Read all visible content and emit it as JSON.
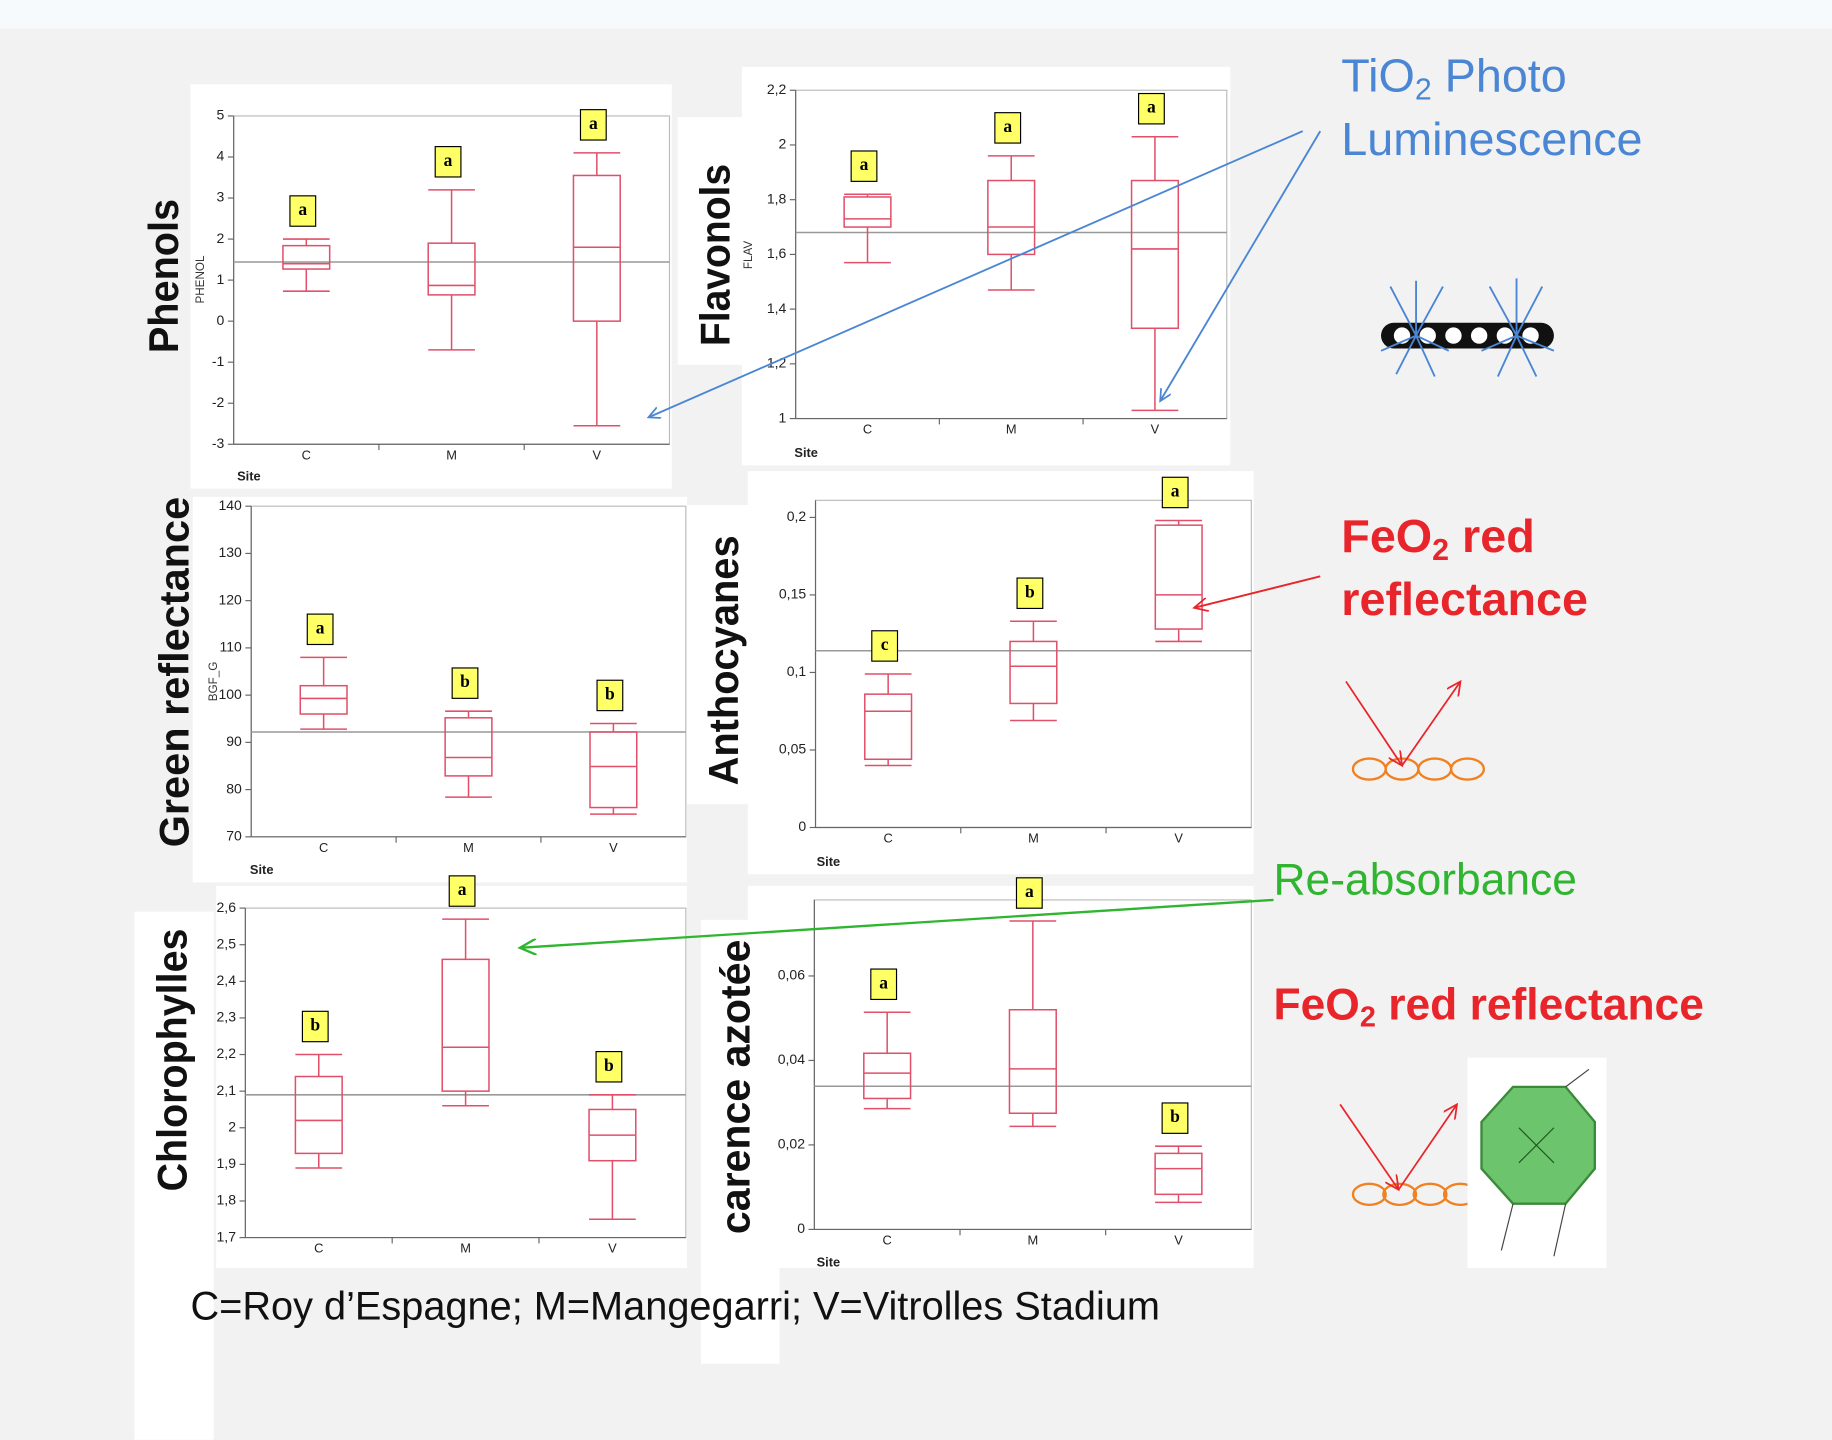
{
  "chart_data": [
    {
      "type": "box",
      "title": "Phenols",
      "ylabel": "PHENOL",
      "xlabel": "Site",
      "categories": [
        "C",
        "M",
        "V"
      ],
      "ylim": [
        -3,
        5
      ],
      "yticks": [
        -3,
        -2,
        -1,
        0,
        1,
        2,
        3,
        4,
        5
      ],
      "mean": 1.44,
      "color": "#e0506a",
      "boxes": [
        {
          "min": 0.73,
          "q1": 1.27,
          "median": 1.4,
          "q3": 1.84,
          "max": 2.0
        },
        {
          "min": -0.7,
          "q1": 0.64,
          "median": 0.87,
          "q3": 1.9,
          "max": 3.2
        },
        {
          "min": -2.55,
          "q1": 0.0,
          "median": 1.8,
          "q3": 3.55,
          "max": 4.1
        }
      ],
      "group_labels": [
        "a",
        "a",
        "a"
      ]
    },
    {
      "type": "box",
      "title": "Flavonols",
      "ylabel": "FLAV",
      "xlabel": "Site",
      "categories": [
        "C",
        "M",
        "V"
      ],
      "ylim": [
        1,
        2.2
      ],
      "yticks": [
        1,
        {
          "value": 1.2,
          "label": "1,2"
        },
        {
          "value": 1.4,
          "label": "1,4"
        },
        {
          "value": 1.6,
          "label": "1,6"
        },
        {
          "value": 1.8,
          "label": "1,8"
        },
        2,
        {
          "value": 2.2,
          "label": "2,2"
        }
      ],
      "mean": 1.68,
      "color": "#e0506a",
      "boxes": [
        {
          "min": 1.57,
          "q1": 1.7,
          "median": 1.73,
          "q3": 1.81,
          "max": 1.82
        },
        {
          "min": 1.47,
          "q1": 1.6,
          "median": 1.7,
          "q3": 1.87,
          "max": 1.96
        },
        {
          "min": 1.03,
          "q1": 1.33,
          "median": 1.62,
          "q3": 1.87,
          "max": 2.03
        }
      ],
      "group_labels": [
        "a",
        "a",
        "a"
      ]
    },
    {
      "type": "box",
      "title": "Green reflectance",
      "ylabel": "BGF_G",
      "xlabel": "Site",
      "categories": [
        "C",
        "M",
        "V"
      ],
      "ylim": [
        70,
        140
      ],
      "yticks": [
        70,
        80,
        90,
        100,
        110,
        120,
        130,
        140
      ],
      "mean": 92.2,
      "color": "#e0506a",
      "boxes": [
        {
          "min": 92.8,
          "q1": 96,
          "median": 99.3,
          "q3": 102,
          "max": 108
        },
        {
          "min": 78.4,
          "q1": 82.9,
          "median": 86.8,
          "q3": 95.2,
          "max": 96.6
        },
        {
          "min": 74.8,
          "q1": 76.2,
          "median": 84.9,
          "q3": 92.2,
          "max": 94
        }
      ],
      "group_labels": [
        "a",
        "b",
        "b"
      ]
    },
    {
      "type": "box",
      "title": "Anthocyanes",
      "xlabel": "Site",
      "categories": [
        "C",
        "M",
        "V"
      ],
      "ylim": [
        0,
        0.211
      ],
      "yticks": [
        0,
        {
          "value": 0.05,
          "label": "0,05"
        },
        {
          "value": 0.1,
          "label": "0,1"
        },
        {
          "value": 0.15,
          "label": "0,15"
        },
        {
          "value": 0.2,
          "label": "0,2"
        }
      ],
      "mean": 0.114,
      "color": "#e0506a",
      "boxes": [
        {
          "min": 0.04,
          "q1": 0.044,
          "median": 0.075,
          "q3": 0.086,
          "max": 0.099
        },
        {
          "min": 0.069,
          "q1": 0.08,
          "median": 0.104,
          "q3": 0.12,
          "max": 0.133
        },
        {
          "min": 0.12,
          "q1": 0.128,
          "median": 0.15,
          "q3": 0.195,
          "max": 0.198
        }
      ],
      "group_labels": [
        "c",
        "b",
        "a"
      ]
    },
    {
      "type": "box",
      "title": "Chlorophylles",
      "categories": [
        "C",
        "M",
        "V"
      ],
      "ylim": [
        1.7,
        2.6
      ],
      "yticks": [
        {
          "value": 1.7,
          "label": "1,7"
        },
        {
          "value": 1.8,
          "label": "1,8"
        },
        {
          "value": 1.9,
          "label": "1,9"
        },
        2,
        {
          "value": 2.1,
          "label": "2,1"
        },
        {
          "value": 2.2,
          "label": "2,2"
        },
        {
          "value": 2.3,
          "label": "2,3"
        },
        {
          "value": 2.4,
          "label": "2,4"
        },
        {
          "value": 2.5,
          "label": "2,5"
        },
        {
          "value": 2.6,
          "label": "2,6"
        }
      ],
      "mean": 2.09,
      "color": "#e0506a",
      "boxes": [
        {
          "min": 1.89,
          "q1": 1.93,
          "median": 2.02,
          "q3": 2.14,
          "max": 2.2
        },
        {
          "min": 2.06,
          "q1": 2.1,
          "median": 2.22,
          "q3": 2.46,
          "max": 2.57
        },
        {
          "min": 1.75,
          "q1": 1.91,
          "median": 1.98,
          "q3": 2.05,
          "max": 2.09
        }
      ],
      "group_labels": [
        "b",
        "a",
        "b"
      ]
    },
    {
      "type": "box",
      "title": "carence azotée",
      "xlabel": "Site",
      "categories": [
        "C",
        "M",
        "V"
      ],
      "ylim": [
        0,
        0.078
      ],
      "yticks": [
        0,
        {
          "value": 0.02,
          "label": "0,02"
        },
        {
          "value": 0.04,
          "label": "0,04"
        },
        {
          "value": 0.06,
          "label": "0,06"
        }
      ],
      "mean": 0.0339,
      "color": "#e0506a",
      "boxes": [
        {
          "min": 0.0286,
          "q1": 0.031,
          "median": 0.037,
          "q3": 0.0417,
          "max": 0.0514
        },
        {
          "min": 0.0244,
          "q1": 0.0275,
          "median": 0.038,
          "q3": 0.052,
          "max": 0.073
        },
        {
          "min": 0.0064,
          "q1": 0.0083,
          "median": 0.0144,
          "q3": 0.018,
          "max": 0.0197
        }
      ],
      "group_labels": [
        "a",
        "a",
        "b"
      ]
    }
  ],
  "annotations": [
    {
      "color": "#4a86d4",
      "bold": false,
      "lines": [
        [
          {
            "text": "TiO"
          },
          {
            "text": "2",
            "sub": true
          },
          {
            "text": " Photo"
          }
        ],
        [
          {
            "text": "Luminescence"
          }
        ]
      ]
    },
    {
      "color": "#e8252a",
      "bold": true,
      "lines": [
        [
          {
            "text": "FeO"
          },
          {
            "text": "2",
            "sub": true
          },
          {
            "text": " red"
          }
        ],
        [
          {
            "text": "reflectance"
          }
        ]
      ]
    },
    {
      "color": "#2fb52f",
      "bold": false,
      "lines": [
        [
          {
            "text": "Re-absorbance"
          }
        ]
      ]
    },
    {
      "color": "#e8252a",
      "bold": true,
      "lines": [
        [
          {
            "text": "FeO"
          },
          {
            "text": "2",
            "sub": true
          },
          {
            "text": " red reflectance"
          }
        ]
      ]
    }
  ],
  "note": "C=Roy d’Espagne;  M=Mangegarri; V=Vitrolles Stadium"
}
